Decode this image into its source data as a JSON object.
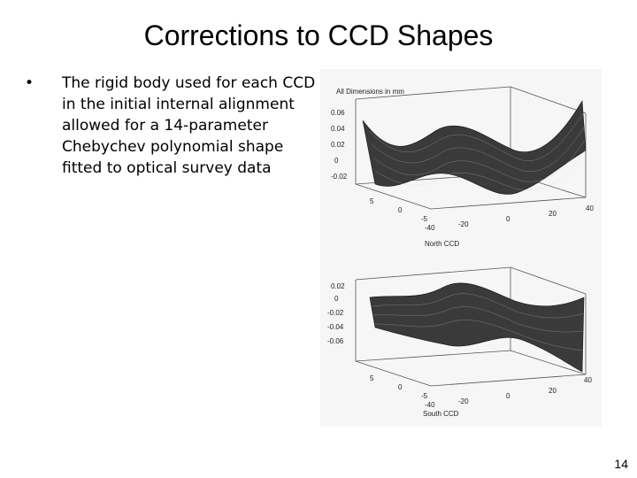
{
  "slide": {
    "title": "Corrections to CCD Shapes",
    "bullet_marker": "•",
    "bullet_text": "The rigid body used for each CCD in the initial internal alignment allowed for a 14-parameter Chebychev polynomial shape fitted to optical survey data",
    "page_number": "14"
  },
  "figure": {
    "header": "All Dimensions in mm",
    "north": {
      "caption": "North CCD",
      "z_ticks": [
        "0.06",
        "0.04",
        "0.02",
        "0",
        "-0.02"
      ],
      "y_ticks": [
        "5",
        "0",
        "-5"
      ],
      "x_ticks": [
        "-40",
        "-20",
        "0",
        "20",
        "40"
      ]
    },
    "south": {
      "caption": "South CCD",
      "z_ticks": [
        "0.02",
        "0",
        "-0.02",
        "-0.04",
        "-0.06"
      ],
      "y_ticks": [
        "5",
        "0",
        "-5"
      ],
      "x_ticks": [
        "-40",
        "-20",
        "0",
        "20",
        "40"
      ]
    },
    "colors": {
      "surface": "#3a3a3a",
      "wire": "#d8d8d8",
      "box": "#555555"
    }
  }
}
